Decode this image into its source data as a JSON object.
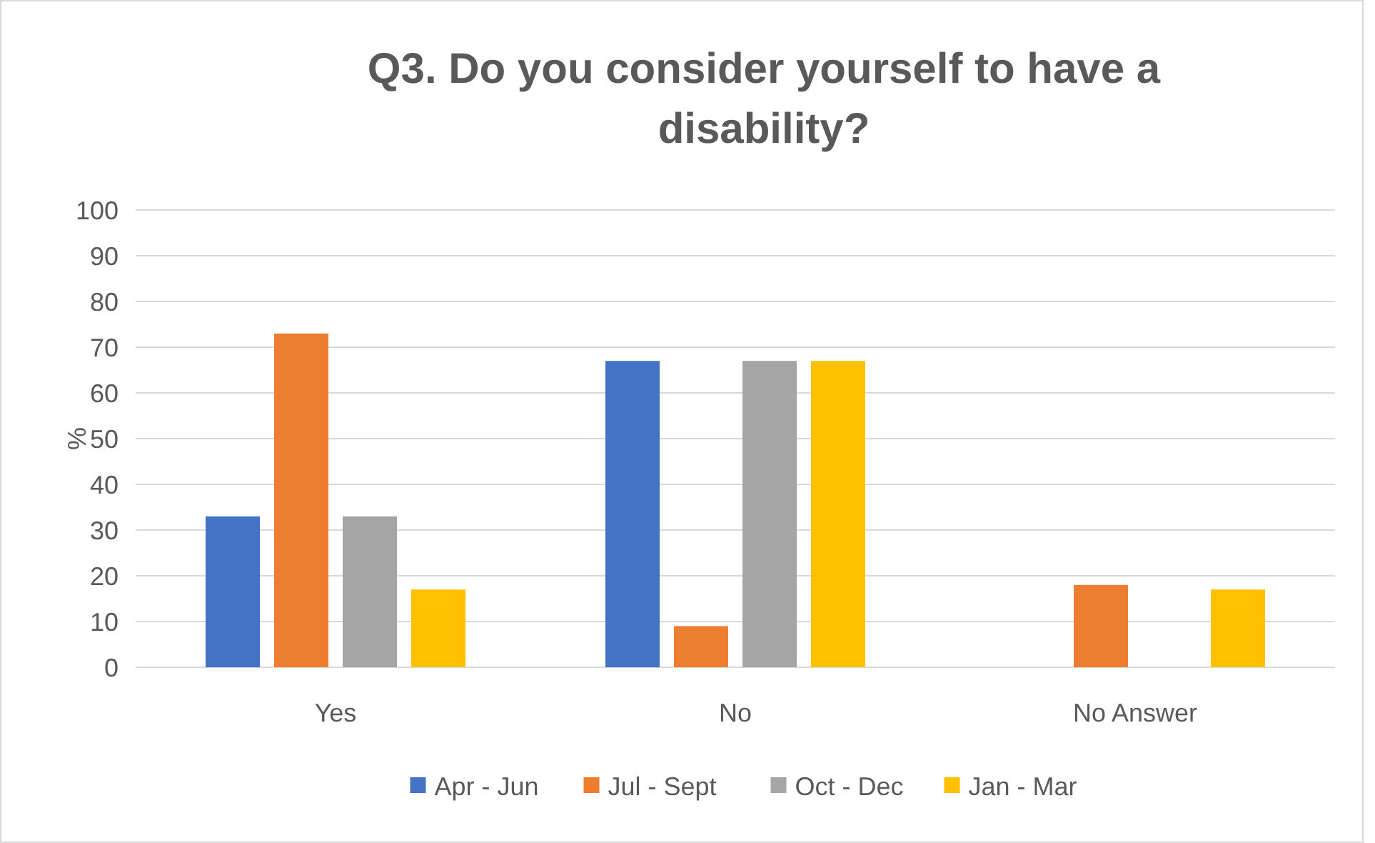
{
  "chart_data": {
    "type": "bar",
    "title": "Q3. Do you consider yourself to have a disability?",
    "ylabel": "%",
    "categories": [
      "Yes",
      "No",
      "No Answer"
    ],
    "series": [
      {
        "name": "Apr - Jun",
        "color": "#4472c4",
        "values": [
          33,
          67,
          0
        ]
      },
      {
        "name": "Jul - Sept",
        "color": "#ed7d31",
        "values": [
          73,
          9,
          18
        ]
      },
      {
        "name": "Oct - Dec",
        "color": "#a5a5a5",
        "values": [
          33,
          67,
          0
        ]
      },
      {
        "name": "Jan - Mar",
        "color": "#ffc000",
        "values": [
          17,
          67,
          17
        ]
      }
    ],
    "ylim": [
      0,
      100
    ],
    "yticks": [
      0,
      10,
      20,
      30,
      40,
      50,
      60,
      70,
      80,
      90,
      100
    ],
    "grid": "y",
    "legend": "bottom"
  }
}
